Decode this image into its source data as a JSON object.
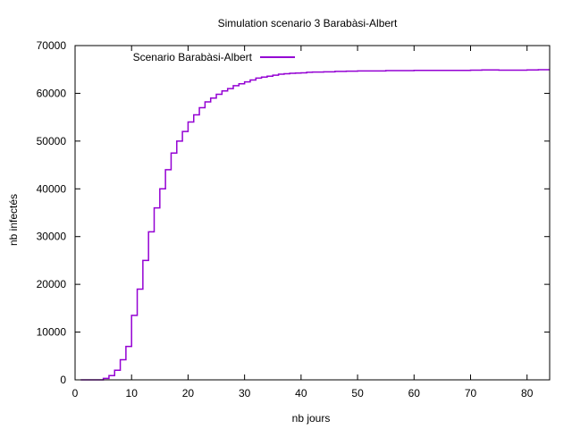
{
  "chart_data": {
    "type": "line",
    "title": "Simulation scenario 3 Barabàsi-Albert",
    "xlabel": "nb jours",
    "ylabel": "nb infectés",
    "xlim": [
      0,
      84
    ],
    "ylim": [
      0,
      70000
    ],
    "xticks": [
      "0",
      "10",
      "20",
      "30",
      "40",
      "50",
      "60",
      "70",
      "80"
    ],
    "yticks": [
      "0",
      "10000",
      "20000",
      "30000",
      "40000",
      "50000",
      "60000",
      "70000"
    ],
    "grid": false,
    "legend_position": "top-left",
    "series": [
      {
        "name": "Scenario Barabàsi-Albert",
        "color": "#9400d3",
        "x": [
          1,
          2,
          3,
          4,
          5,
          6,
          7,
          8,
          9,
          10,
          11,
          12,
          13,
          14,
          15,
          16,
          17,
          18,
          19,
          20,
          21,
          22,
          23,
          24,
          25,
          26,
          27,
          28,
          29,
          30,
          31,
          32,
          33,
          34,
          35,
          36,
          37,
          38,
          39,
          40,
          41,
          42,
          44,
          46,
          48,
          50,
          55,
          60,
          65,
          70,
          72,
          75,
          80,
          82,
          84
        ],
        "y": [
          0,
          0,
          0,
          0,
          300,
          900,
          2000,
          4200,
          7000,
          13500,
          19000,
          25000,
          31000,
          36000,
          40000,
          44000,
          47500,
          50000,
          52000,
          54000,
          55500,
          57000,
          58200,
          59000,
          59800,
          60500,
          61000,
          61600,
          62000,
          62400,
          62800,
          63200,
          63400,
          63600,
          63800,
          64000,
          64100,
          64200,
          64250,
          64300,
          64400,
          64450,
          64500,
          64600,
          64650,
          64700,
          64750,
          64800,
          64800,
          64850,
          64900,
          64850,
          64900,
          64950,
          64950
        ]
      }
    ]
  }
}
